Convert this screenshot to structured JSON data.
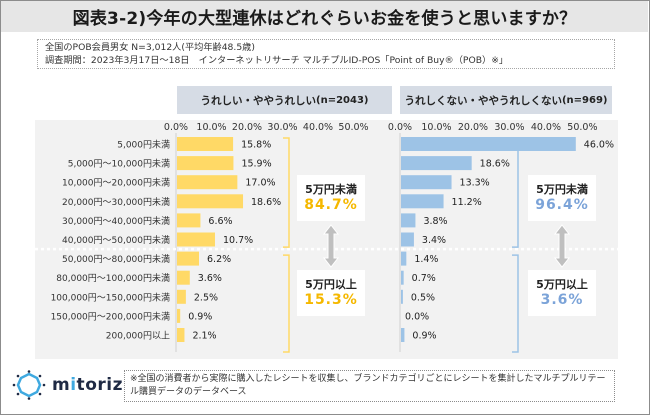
{
  "title": "図表3-2)今年の大型連休はどれぐらいお金を使うと思いますか？",
  "info": {
    "line1": "全国のPOB会員男女 N=3,012人(平均年齢48.5歳)",
    "line2": "調査期間：2023年3月17日～18日　インターネットリサーチ マルチプルID-POS「Point of Buy®（POB）※」"
  },
  "colors": {
    "happy": "#FFD966",
    "happy_text": "#F5B800",
    "unhappy": "#9DC3E6",
    "unhappy_text": "#7BA3D8",
    "bracket_happy": "#FFD966",
    "bracket_unhappy": "#9DC3E6",
    "arrow": "#BFBFBF"
  },
  "chart_data": {
    "type": "bar",
    "orientation": "horizontal",
    "categories": [
      "5,000円未満",
      "5,000円～10,000円未満",
      "10,000円～20,000円未満",
      "20,000円～30,000円未満",
      "30,000円～40,000円未満",
      "40,000円～50,000円未満",
      "50,000円～80,000円未満",
      "80,000円～100,000円未満",
      "100,000円～150,000円未満",
      "150,000円～200,000円未満",
      "200,000円以上"
    ],
    "series": [
      {
        "name": "うれしい・ややうれしい",
        "header": "うれしい・ややうれしい",
        "n_label": "(n=2043)",
        "values": [
          15.8,
          15.9,
          17.0,
          18.6,
          6.6,
          10.7,
          6.2,
          3.6,
          2.5,
          0.9,
          2.1
        ],
        "labels": [
          "15.8%",
          "15.9%",
          "17.0%",
          "18.6%",
          "6.6%",
          "10.7%",
          "6.2%",
          "3.6%",
          "2.5%",
          "0.9%",
          "2.1%"
        ],
        "summary": [
          {
            "label": "5万円未満",
            "value": "84.7%"
          },
          {
            "label": "5万円以上",
            "value": "15.3%"
          }
        ]
      },
      {
        "name": "うれしくない・ややうれしくない",
        "header": "うれしくない・ややうれしくない",
        "n_label": "(n=969)",
        "values": [
          46.0,
          18.6,
          13.3,
          11.2,
          3.8,
          3.4,
          1.4,
          0.7,
          0.5,
          0.0,
          0.9
        ],
        "labels": [
          "46.0%",
          "18.6%",
          "13.3%",
          "11.2%",
          "3.8%",
          "3.4%",
          "1.4%",
          "0.7%",
          "0.5%",
          "0.0%",
          "0.9%"
        ],
        "summary": [
          {
            "label": "5万円未満",
            "value": "96.4%"
          },
          {
            "label": "5万円以上",
            "value": "3.6%"
          }
        ]
      }
    ],
    "xlim": [
      0,
      50
    ],
    "xticks": [
      "0.0%",
      "10.0%",
      "20.0%",
      "30.0%",
      "40.0%",
      "50.0%"
    ],
    "split_after_index": 5,
    "grid": false,
    "title": "図表3-2)今年の大型連休はどれぐらいお金を使うと思いますか？"
  },
  "footer": {
    "logo": "mitoriz",
    "note": "※全国の消費者から実際に購入したレシートを収集し、ブランドカテゴリごとにレシートを集計したマルチプルリテール購買データのデータベース"
  }
}
